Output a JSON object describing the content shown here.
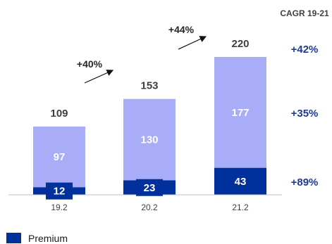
{
  "colors": {
    "premium": "#00309c",
    "other": "#a9acf6",
    "cagr_text": "#1f3a93",
    "axis": "#bfbfbf"
  },
  "chart_data": {
    "type": "bar",
    "stacked": true,
    "categories": [
      "19.2",
      "20.2",
      "21.2"
    ],
    "series": [
      {
        "name": "Premium",
        "values": [
          12,
          23,
          43
        ]
      },
      {
        "values": [
          97,
          130,
          177
        ]
      }
    ],
    "totals": [
      109,
      153,
      220
    ],
    "growth_labels": [
      "+40%",
      "+44%"
    ],
    "cagr_header": "CAGR 19-21",
    "cagr_values": [
      "+42%",
      "+35%",
      "+89%"
    ],
    "ylim": [
      0,
      220
    ],
    "legend": {
      "label": "Premium",
      "position": "bottom-left"
    }
  }
}
